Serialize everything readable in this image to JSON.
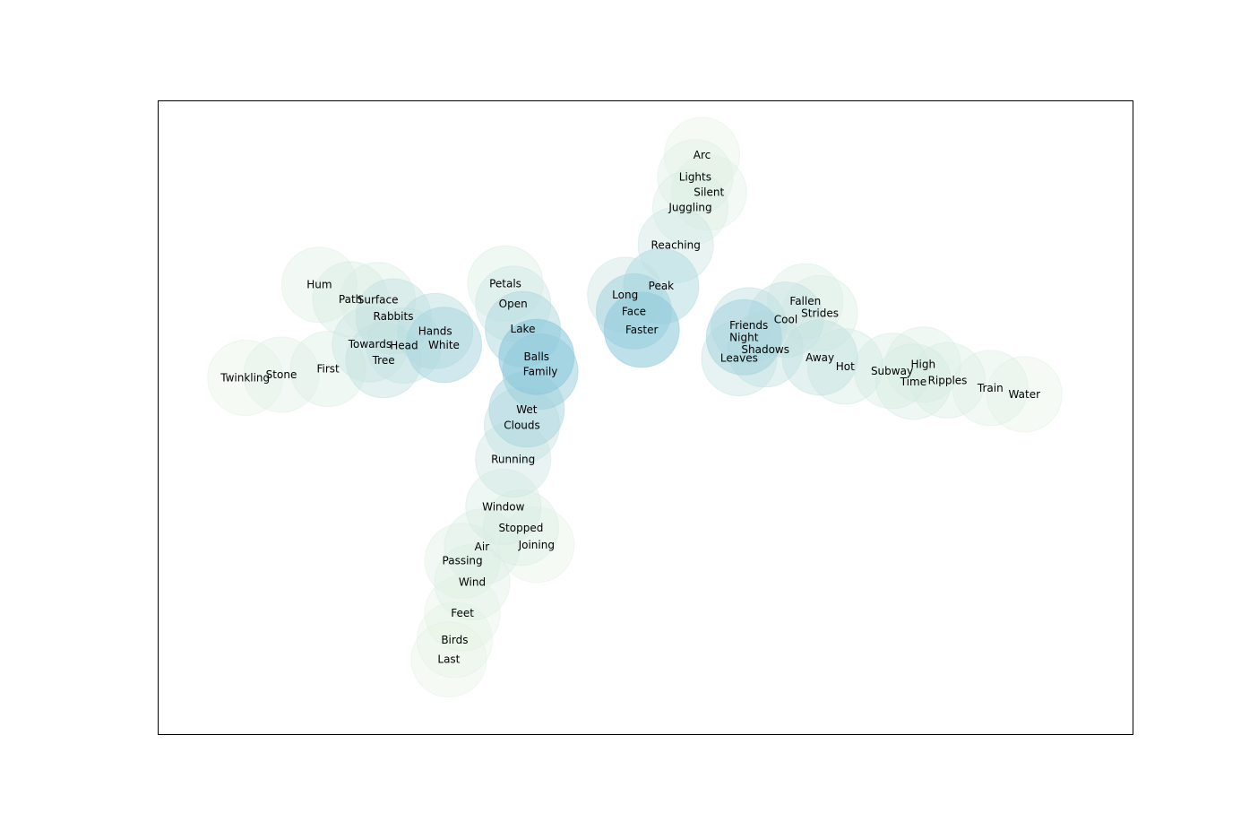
{
  "chart_data": {
    "type": "scatter",
    "title": "",
    "xlabel": "",
    "ylabel": "",
    "grid": false,
    "show_axes_ticks": false,
    "xlim": [
      0,
      100
    ],
    "ylim": [
      0,
      100
    ],
    "bubble_color_low": "#e6f2e3",
    "bubble_color_high": "#8cc8dc",
    "points": [
      {
        "label": "Arc",
        "x": 55.8,
        "y": 91.5,
        "w": 0.05
      },
      {
        "label": "Lights",
        "x": 55.1,
        "y": 88.0,
        "w": 0.1
      },
      {
        "label": "Silent",
        "x": 56.5,
        "y": 85.6,
        "w": 0.08
      },
      {
        "label": "Juggling",
        "x": 54.6,
        "y": 83.2,
        "w": 0.15
      },
      {
        "label": "Reaching",
        "x": 53.1,
        "y": 77.3,
        "w": 0.3
      },
      {
        "label": "Peak",
        "x": 51.6,
        "y": 70.8,
        "w": 0.6
      },
      {
        "label": "Long",
        "x": 47.9,
        "y": 69.4,
        "w": 0.3
      },
      {
        "label": "Face",
        "x": 48.8,
        "y": 66.8,
        "w": 0.75
      },
      {
        "label": "Faster",
        "x": 49.6,
        "y": 63.9,
        "w": 0.95
      },
      {
        "label": "Petals",
        "x": 35.6,
        "y": 71.2,
        "w": 0.15
      },
      {
        "label": "Open",
        "x": 36.4,
        "y": 68.0,
        "w": 0.3
      },
      {
        "label": "Lake",
        "x": 37.4,
        "y": 64.0,
        "w": 0.65
      },
      {
        "label": "Balls",
        "x": 38.8,
        "y": 59.6,
        "w": 1.0
      },
      {
        "label": "Family",
        "x": 39.2,
        "y": 57.3,
        "w": 0.8
      },
      {
        "label": "Wet",
        "x": 37.8,
        "y": 51.3,
        "w": 0.7
      },
      {
        "label": "Clouds",
        "x": 37.3,
        "y": 48.8,
        "w": 0.4
      },
      {
        "label": "Running",
        "x": 36.4,
        "y": 43.4,
        "w": 0.3
      },
      {
        "label": "Window",
        "x": 35.4,
        "y": 35.9,
        "w": 0.2
      },
      {
        "label": "Stopped",
        "x": 37.2,
        "y": 32.6,
        "w": 0.15
      },
      {
        "label": "Joining",
        "x": 38.8,
        "y": 29.9,
        "w": 0.05
      },
      {
        "label": "Air",
        "x": 33.2,
        "y": 29.6,
        "w": 0.15
      },
      {
        "label": "Passing",
        "x": 31.2,
        "y": 27.4,
        "w": 0.1
      },
      {
        "label": "Wind",
        "x": 32.2,
        "y": 24.0,
        "w": 0.1
      },
      {
        "label": "Feet",
        "x": 31.2,
        "y": 19.1,
        "w": 0.05
      },
      {
        "label": "Birds",
        "x": 30.4,
        "y": 14.9,
        "w": 0.05
      },
      {
        "label": "Last",
        "x": 29.8,
        "y": 11.8,
        "w": 0.02
      },
      {
        "label": "Hum",
        "x": 16.5,
        "y": 71.0,
        "w": 0.1
      },
      {
        "label": "Path",
        "x": 19.7,
        "y": 68.7,
        "w": 0.2
      },
      {
        "label": "Surface",
        "x": 22.5,
        "y": 68.6,
        "w": 0.15
      },
      {
        "label": "Rabbits",
        "x": 24.1,
        "y": 66.0,
        "w": 0.4
      },
      {
        "label": "Hands",
        "x": 28.4,
        "y": 63.7,
        "w": 0.5
      },
      {
        "label": "White",
        "x": 29.3,
        "y": 61.5,
        "w": 0.7
      },
      {
        "label": "Towards",
        "x": 21.7,
        "y": 61.6,
        "w": 0.3
      },
      {
        "label": "Head",
        "x": 25.2,
        "y": 61.4,
        "w": 0.35
      },
      {
        "label": "Tree",
        "x": 23.1,
        "y": 59.1,
        "w": 0.4
      },
      {
        "label": "First",
        "x": 17.4,
        "y": 57.7,
        "w": 0.15
      },
      {
        "label": "Stone",
        "x": 12.6,
        "y": 56.8,
        "w": 0.1
      },
      {
        "label": "Twinkling",
        "x": 8.9,
        "y": 56.3,
        "w": 0.05
      },
      {
        "label": "Fallen",
        "x": 66.4,
        "y": 68.4,
        "w": 0.15
      },
      {
        "label": "Strides",
        "x": 67.9,
        "y": 66.5,
        "w": 0.15
      },
      {
        "label": "Cool",
        "x": 64.4,
        "y": 65.5,
        "w": 0.4
      },
      {
        "label": "Friends",
        "x": 60.6,
        "y": 64.6,
        "w": 0.45
      },
      {
        "label": "Night",
        "x": 60.1,
        "y": 62.7,
        "w": 0.75
      },
      {
        "label": "Shadows",
        "x": 62.3,
        "y": 60.8,
        "w": 0.4
      },
      {
        "label": "Leaves",
        "x": 59.6,
        "y": 59.4,
        "w": 0.35
      },
      {
        "label": "Away",
        "x": 67.9,
        "y": 59.5,
        "w": 0.4
      },
      {
        "label": "Hot",
        "x": 70.5,
        "y": 58.1,
        "w": 0.25
      },
      {
        "label": "Subway",
        "x": 75.3,
        "y": 57.4,
        "w": 0.2
      },
      {
        "label": "High",
        "x": 78.5,
        "y": 58.4,
        "w": 0.15
      },
      {
        "label": "Time",
        "x": 77.5,
        "y": 55.7,
        "w": 0.2
      },
      {
        "label": "Ripples",
        "x": 81.0,
        "y": 55.9,
        "w": 0.15
      },
      {
        "label": "Train",
        "x": 85.4,
        "y": 54.7,
        "w": 0.1
      },
      {
        "label": "Water",
        "x": 88.9,
        "y": 53.7,
        "w": 0.05
      }
    ]
  }
}
